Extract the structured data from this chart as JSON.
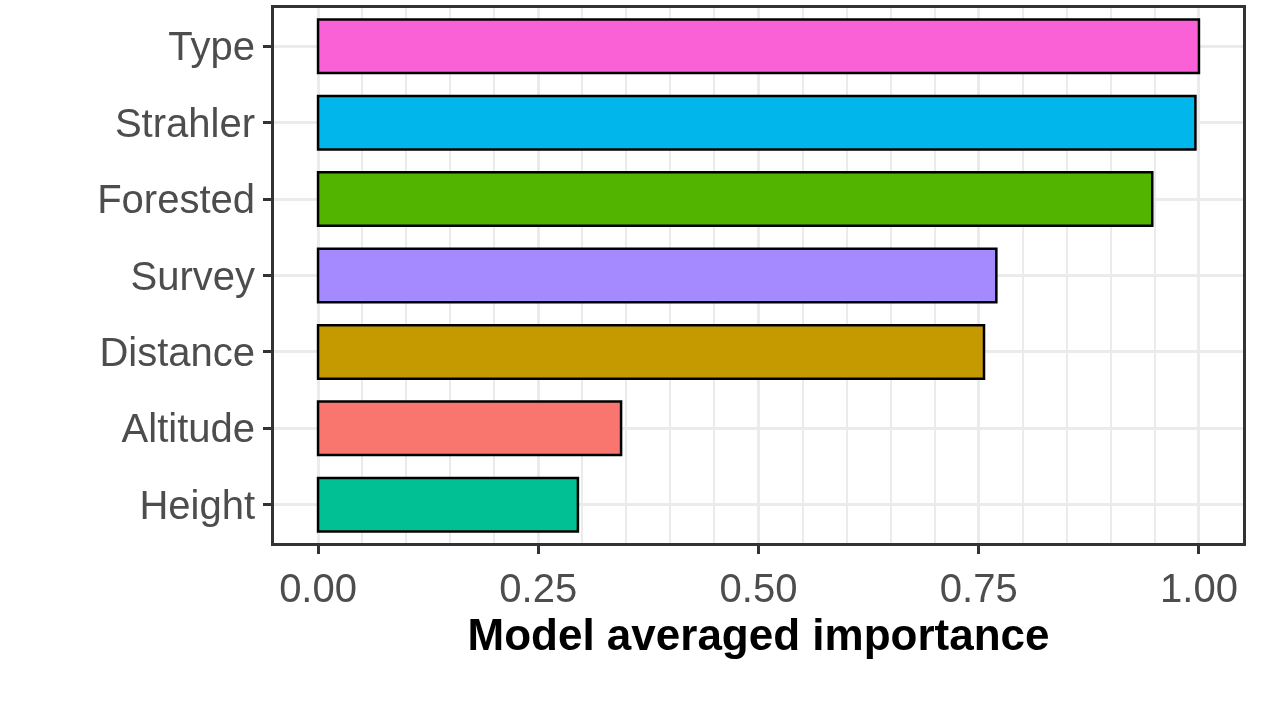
{
  "chart_data": {
    "type": "bar",
    "orientation": "horizontal",
    "xlabel": "Model averaged importance",
    "categories": [
      "Type",
      "Strahler",
      "Forested",
      "Survey",
      "Distance",
      "Altitude",
      "Height"
    ],
    "values": [
      1.0,
      0.996,
      0.947,
      0.77,
      0.756,
      0.344,
      0.295
    ],
    "colors": [
      "#fb61d7",
      "#00b6eb",
      "#53b400",
      "#a58aff",
      "#c49a00",
      "#f8766d",
      "#00c094"
    ],
    "xlim": [
      -0.05,
      1.05
    ],
    "xticks": [
      {
        "value": 0,
        "label": "0.00"
      },
      {
        "value": 0.25,
        "label": "0.25"
      },
      {
        "value": 0.5,
        "label": "0.50"
      },
      {
        "value": 0.75,
        "label": "0.75"
      },
      {
        "value": 1,
        "label": "1.00"
      }
    ],
    "grid": true
  }
}
